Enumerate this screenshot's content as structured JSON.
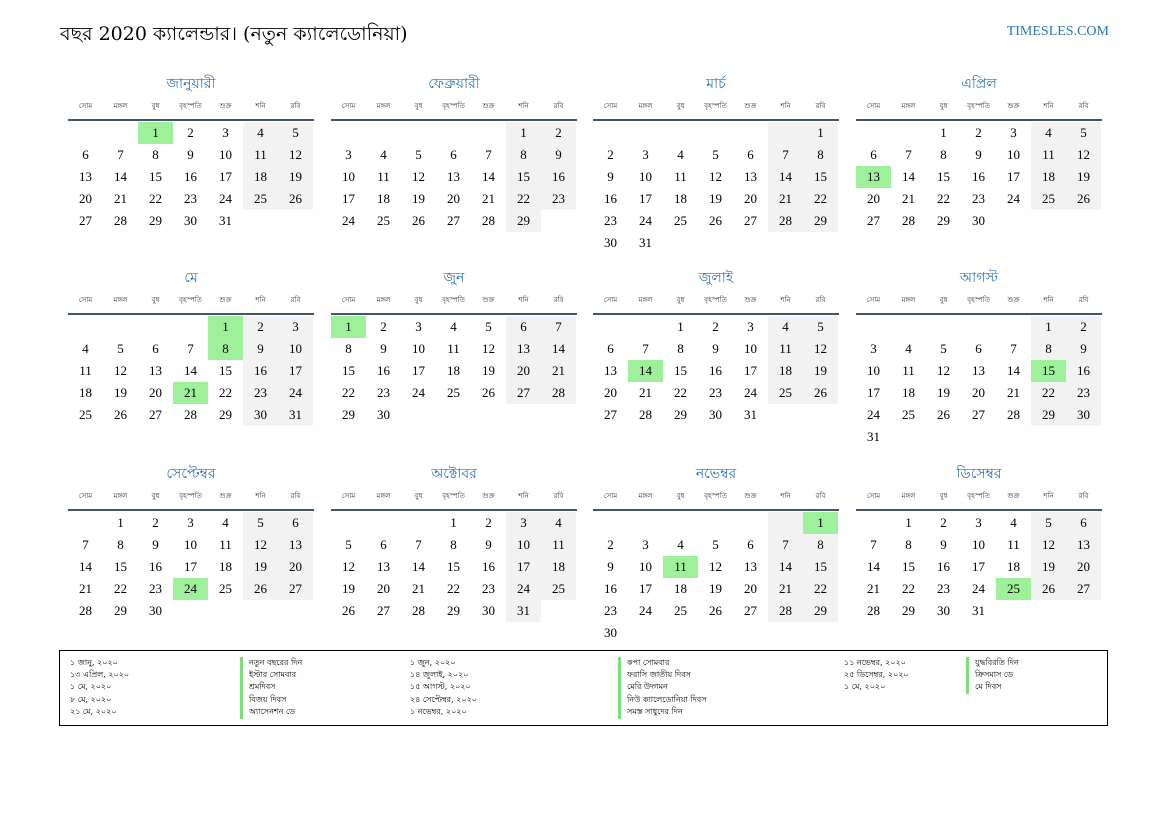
{
  "header": {
    "title": "বছর 2020 ক্যালেন্ডার। (নতুন ক্যালেডোনিয়া)",
    "site": "TIMESLES.COM"
  },
  "weekday_labels": [
    "সোম",
    "মঙ্গল",
    "বুধ",
    "বৃহস্পতি",
    "শুক্র",
    "শনি",
    "রবি"
  ],
  "colors": {
    "accent": "#2e74b5",
    "holiday": "#9ef09a",
    "weekend": "#f2f2f2",
    "rule": "#44546a"
  },
  "months": [
    {
      "name": "জানুয়ারী",
      "weeks": [
        [
          "",
          "",
          "1",
          "2",
          "3",
          "4",
          "5"
        ],
        [
          "6",
          "7",
          "8",
          "9",
          "10",
          "11",
          "12"
        ],
        [
          "13",
          "14",
          "15",
          "16",
          "17",
          "18",
          "19"
        ],
        [
          "20",
          "21",
          "22",
          "23",
          "24",
          "25",
          "26"
        ],
        [
          "27",
          "28",
          "29",
          "30",
          "31",
          "",
          ""
        ]
      ],
      "holidays": [
        "1"
      ]
    },
    {
      "name": "ফেব্রুয়ারী",
      "weeks": [
        [
          "",
          "",
          "",
          "",
          "",
          "1",
          "2"
        ],
        [
          "3",
          "4",
          "5",
          "6",
          "7",
          "8",
          "9"
        ],
        [
          "10",
          "11",
          "12",
          "13",
          "14",
          "15",
          "16"
        ],
        [
          "17",
          "18",
          "19",
          "20",
          "21",
          "22",
          "23"
        ],
        [
          "24",
          "25",
          "26",
          "27",
          "28",
          "29",
          ""
        ]
      ],
      "holidays": []
    },
    {
      "name": "মার্চ",
      "weeks": [
        [
          "",
          "",
          "",
          "",
          "",
          "",
          "1"
        ],
        [
          "2",
          "3",
          "4",
          "5",
          "6",
          "7",
          "8"
        ],
        [
          "9",
          "10",
          "11",
          "12",
          "13",
          "14",
          "15"
        ],
        [
          "16",
          "17",
          "18",
          "19",
          "20",
          "21",
          "22"
        ],
        [
          "23",
          "24",
          "25",
          "26",
          "27",
          "28",
          "29"
        ],
        [
          "30",
          "31",
          "",
          "",
          "",
          "",
          ""
        ]
      ],
      "holidays": []
    },
    {
      "name": "এপ্রিল",
      "weeks": [
        [
          "",
          "",
          "1",
          "2",
          "3",
          "4",
          "5"
        ],
        [
          "6",
          "7",
          "8",
          "9",
          "10",
          "11",
          "12"
        ],
        [
          "13",
          "14",
          "15",
          "16",
          "17",
          "18",
          "19"
        ],
        [
          "20",
          "21",
          "22",
          "23",
          "24",
          "25",
          "26"
        ],
        [
          "27",
          "28",
          "29",
          "30",
          "",
          "",
          ""
        ]
      ],
      "holidays": [
        "13"
      ]
    },
    {
      "name": "মে",
      "weeks": [
        [
          "",
          "",
          "",
          "",
          "1",
          "2",
          "3"
        ],
        [
          "4",
          "5",
          "6",
          "7",
          "8",
          "9",
          "10"
        ],
        [
          "11",
          "12",
          "13",
          "14",
          "15",
          "16",
          "17"
        ],
        [
          "18",
          "19",
          "20",
          "21",
          "22",
          "23",
          "24"
        ],
        [
          "25",
          "26",
          "27",
          "28",
          "29",
          "30",
          "31"
        ]
      ],
      "holidays": [
        "1",
        "8",
        "21"
      ]
    },
    {
      "name": "জুন",
      "weeks": [
        [
          "1",
          "2",
          "3",
          "4",
          "5",
          "6",
          "7"
        ],
        [
          "8",
          "9",
          "10",
          "11",
          "12",
          "13",
          "14"
        ],
        [
          "15",
          "16",
          "17",
          "18",
          "19",
          "20",
          "21"
        ],
        [
          "22",
          "23",
          "24",
          "25",
          "26",
          "27",
          "28"
        ],
        [
          "29",
          "30",
          "",
          "",
          "",
          "",
          ""
        ]
      ],
      "holidays": [
        "1"
      ]
    },
    {
      "name": "জুলাই",
      "weeks": [
        [
          "",
          "",
          "1",
          "2",
          "3",
          "4",
          "5"
        ],
        [
          "6",
          "7",
          "8",
          "9",
          "10",
          "11",
          "12"
        ],
        [
          "13",
          "14",
          "15",
          "16",
          "17",
          "18",
          "19"
        ],
        [
          "20",
          "21",
          "22",
          "23",
          "24",
          "25",
          "26"
        ],
        [
          "27",
          "28",
          "29",
          "30",
          "31",
          "",
          ""
        ]
      ],
      "holidays": [
        "14"
      ]
    },
    {
      "name": "আগস্ট",
      "weeks": [
        [
          "",
          "",
          "",
          "",
          "",
          "1",
          "2"
        ],
        [
          "3",
          "4",
          "5",
          "6",
          "7",
          "8",
          "9"
        ],
        [
          "10",
          "11",
          "12",
          "13",
          "14",
          "15",
          "16"
        ],
        [
          "17",
          "18",
          "19",
          "20",
          "21",
          "22",
          "23"
        ],
        [
          "24",
          "25",
          "26",
          "27",
          "28",
          "29",
          "30"
        ],
        [
          "31",
          "",
          "",
          "",
          "",
          "",
          ""
        ]
      ],
      "holidays": [
        "15"
      ]
    },
    {
      "name": "সেপ্টেম্বর",
      "weeks": [
        [
          "",
          "1",
          "2",
          "3",
          "4",
          "5",
          "6"
        ],
        [
          "7",
          "8",
          "9",
          "10",
          "11",
          "12",
          "13"
        ],
        [
          "14",
          "15",
          "16",
          "17",
          "18",
          "19",
          "20"
        ],
        [
          "21",
          "22",
          "23",
          "24",
          "25",
          "26",
          "27"
        ],
        [
          "28",
          "29",
          "30",
          "",
          "",
          "",
          ""
        ]
      ],
      "holidays": [
        "24"
      ]
    },
    {
      "name": "অক্টোবর",
      "weeks": [
        [
          "",
          "",
          "",
          "1",
          "2",
          "3",
          "4"
        ],
        [
          "5",
          "6",
          "7",
          "8",
          "9",
          "10",
          "11"
        ],
        [
          "12",
          "13",
          "14",
          "15",
          "16",
          "17",
          "18"
        ],
        [
          "19",
          "20",
          "21",
          "22",
          "23",
          "24",
          "25"
        ],
        [
          "26",
          "27",
          "28",
          "29",
          "30",
          "31",
          ""
        ]
      ],
      "holidays": []
    },
    {
      "name": "নভেম্বর",
      "weeks": [
        [
          "",
          "",
          "",
          "",
          "",
          "",
          "1"
        ],
        [
          "2",
          "3",
          "4",
          "5",
          "6",
          "7",
          "8"
        ],
        [
          "9",
          "10",
          "11",
          "12",
          "13",
          "14",
          "15"
        ],
        [
          "16",
          "17",
          "18",
          "19",
          "20",
          "21",
          "22"
        ],
        [
          "23",
          "24",
          "25",
          "26",
          "27",
          "28",
          "29"
        ],
        [
          "30",
          "",
          "",
          "",
          "",
          "",
          ""
        ]
      ],
      "holidays": [
        "1",
        "11"
      ]
    },
    {
      "name": "ডিসেম্বর",
      "weeks": [
        [
          "",
          "1",
          "2",
          "3",
          "4",
          "5",
          "6"
        ],
        [
          "7",
          "8",
          "9",
          "10",
          "11",
          "12",
          "13"
        ],
        [
          "14",
          "15",
          "16",
          "17",
          "18",
          "19",
          "20"
        ],
        [
          "21",
          "22",
          "23",
          "24",
          "25",
          "26",
          "27"
        ],
        [
          "28",
          "29",
          "30",
          "31",
          "",
          "",
          ""
        ]
      ],
      "holidays": [
        "25"
      ]
    }
  ],
  "legend": {
    "columns": [
      [
        {
          "date": "১ জানু, ২০২০",
          "name": "নতুন বছরের দিন"
        },
        {
          "date": "১৩ এপ্রিল, ২০২০",
          "name": "ইস্টার সোমবার"
        },
        {
          "date": "১ মে, ২০২০",
          "name": "শ্রমদিবস"
        },
        {
          "date": "৮ মে, ২০২০",
          "name": "বিজয় দিবস"
        },
        {
          "date": "২১ মে, ২০২০",
          "name": "অ্যাসেনশন ডে"
        }
      ],
      [
        {
          "date": "১ জুন, ২০২০",
          "name": "কপা সোমবার"
        },
        {
          "date": "১৪ জুলাই, ২০২০",
          "name": "ফরাসি জাতীয় দিবস"
        },
        {
          "date": "১৫ আগস্ট, ২০২০",
          "name": "মেরি উদ্গমন"
        },
        {
          "date": "২৪ সেপ্টেম্বর, ২০২০",
          "name": "নিউ ক্যালেডোনিয়া দিবস"
        },
        {
          "date": "১ নভেম্বর, ২০২০",
          "name": "সমস্ত সাধুদের দিন"
        }
      ],
      [
        {
          "date": "১১ নভেম্বর, ২০২০",
          "name": "যুদ্ধবিরতি দিন"
        },
        {
          "date": "২৫ ডিসেম্বর, ২০২০",
          "name": "ক্রিসমাস ডে"
        },
        {
          "date": "১ মে, ২০২০",
          "name": "মে দিবস"
        }
      ]
    ]
  }
}
